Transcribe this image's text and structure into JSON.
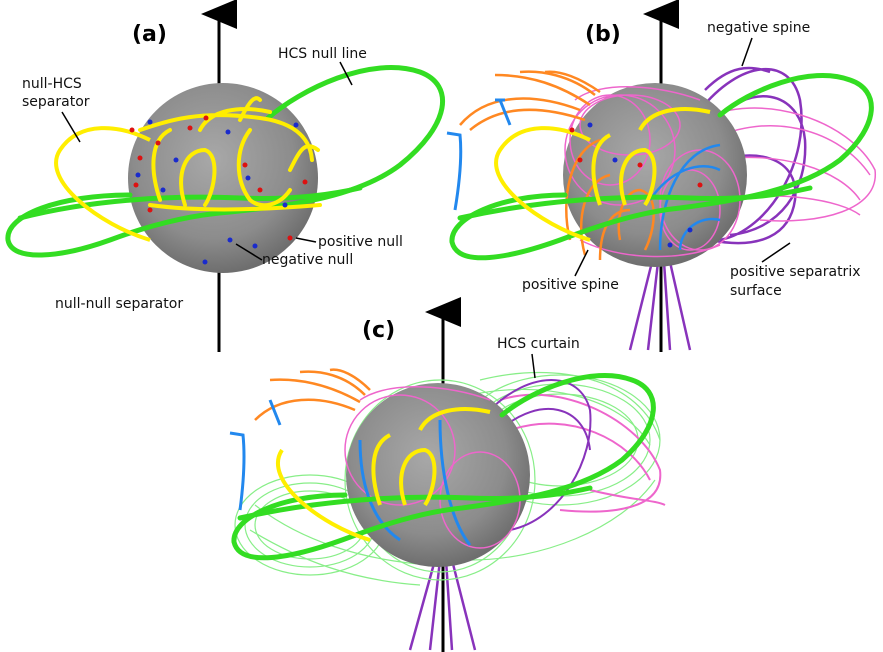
{
  "panels": [
    {
      "label": "(a)",
      "annotations": {
        "hcs_null_line": "HCS null line",
        "null_hcs_separator_1": "null-HCS",
        "null_hcs_separator_2": "separator",
        "positive_null": "positive null",
        "negative_null": "negative null",
        "null_null_separator": "null-null separator"
      }
    },
    {
      "label": "(b)",
      "annotations": {
        "negative_spine": "negative spine",
        "positive_spine": "positive spine",
        "positive_separatrix_surface_1": "positive separatrix",
        "positive_separatrix_surface_2": "surface"
      }
    },
    {
      "label": "(c)",
      "annotations": {
        "hcs_curtain": "HCS curtain"
      }
    }
  ],
  "colors": {
    "hcs_null_line": "#33dd22",
    "null_hcs_separator": "#ffee00",
    "positive_null": "#dd1111",
    "negative_null": "#1a2bcc",
    "negative_spine": "#8833bb",
    "positive_spine": "#ff8822",
    "separatrix_surface": "#ee66cc",
    "blue_lines": "#2288ee",
    "hcs_curtain": "#88ee88",
    "sun": "#8a8a8a",
    "axis": "#000000"
  }
}
